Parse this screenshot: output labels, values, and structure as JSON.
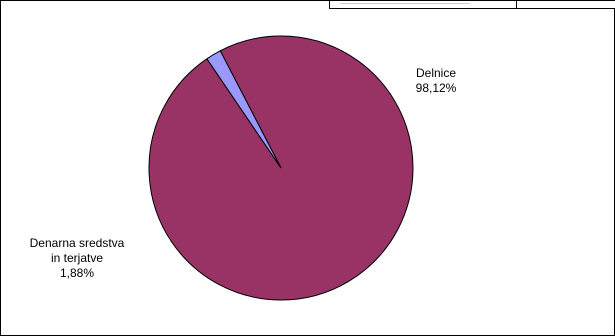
{
  "chart_data": {
    "type": "pie",
    "title": "",
    "slices": [
      {
        "label_lines": [
          "Delnice"
        ],
        "value_text": "98,12%",
        "value": 98.12,
        "color": "#993366"
      },
      {
        "label_lines": [
          "Denarna sredstva",
          "in terjatve"
        ],
        "value_text": "1,88%",
        "value": 1.88,
        "color": "#9999ff"
      }
    ],
    "legend": "none"
  }
}
